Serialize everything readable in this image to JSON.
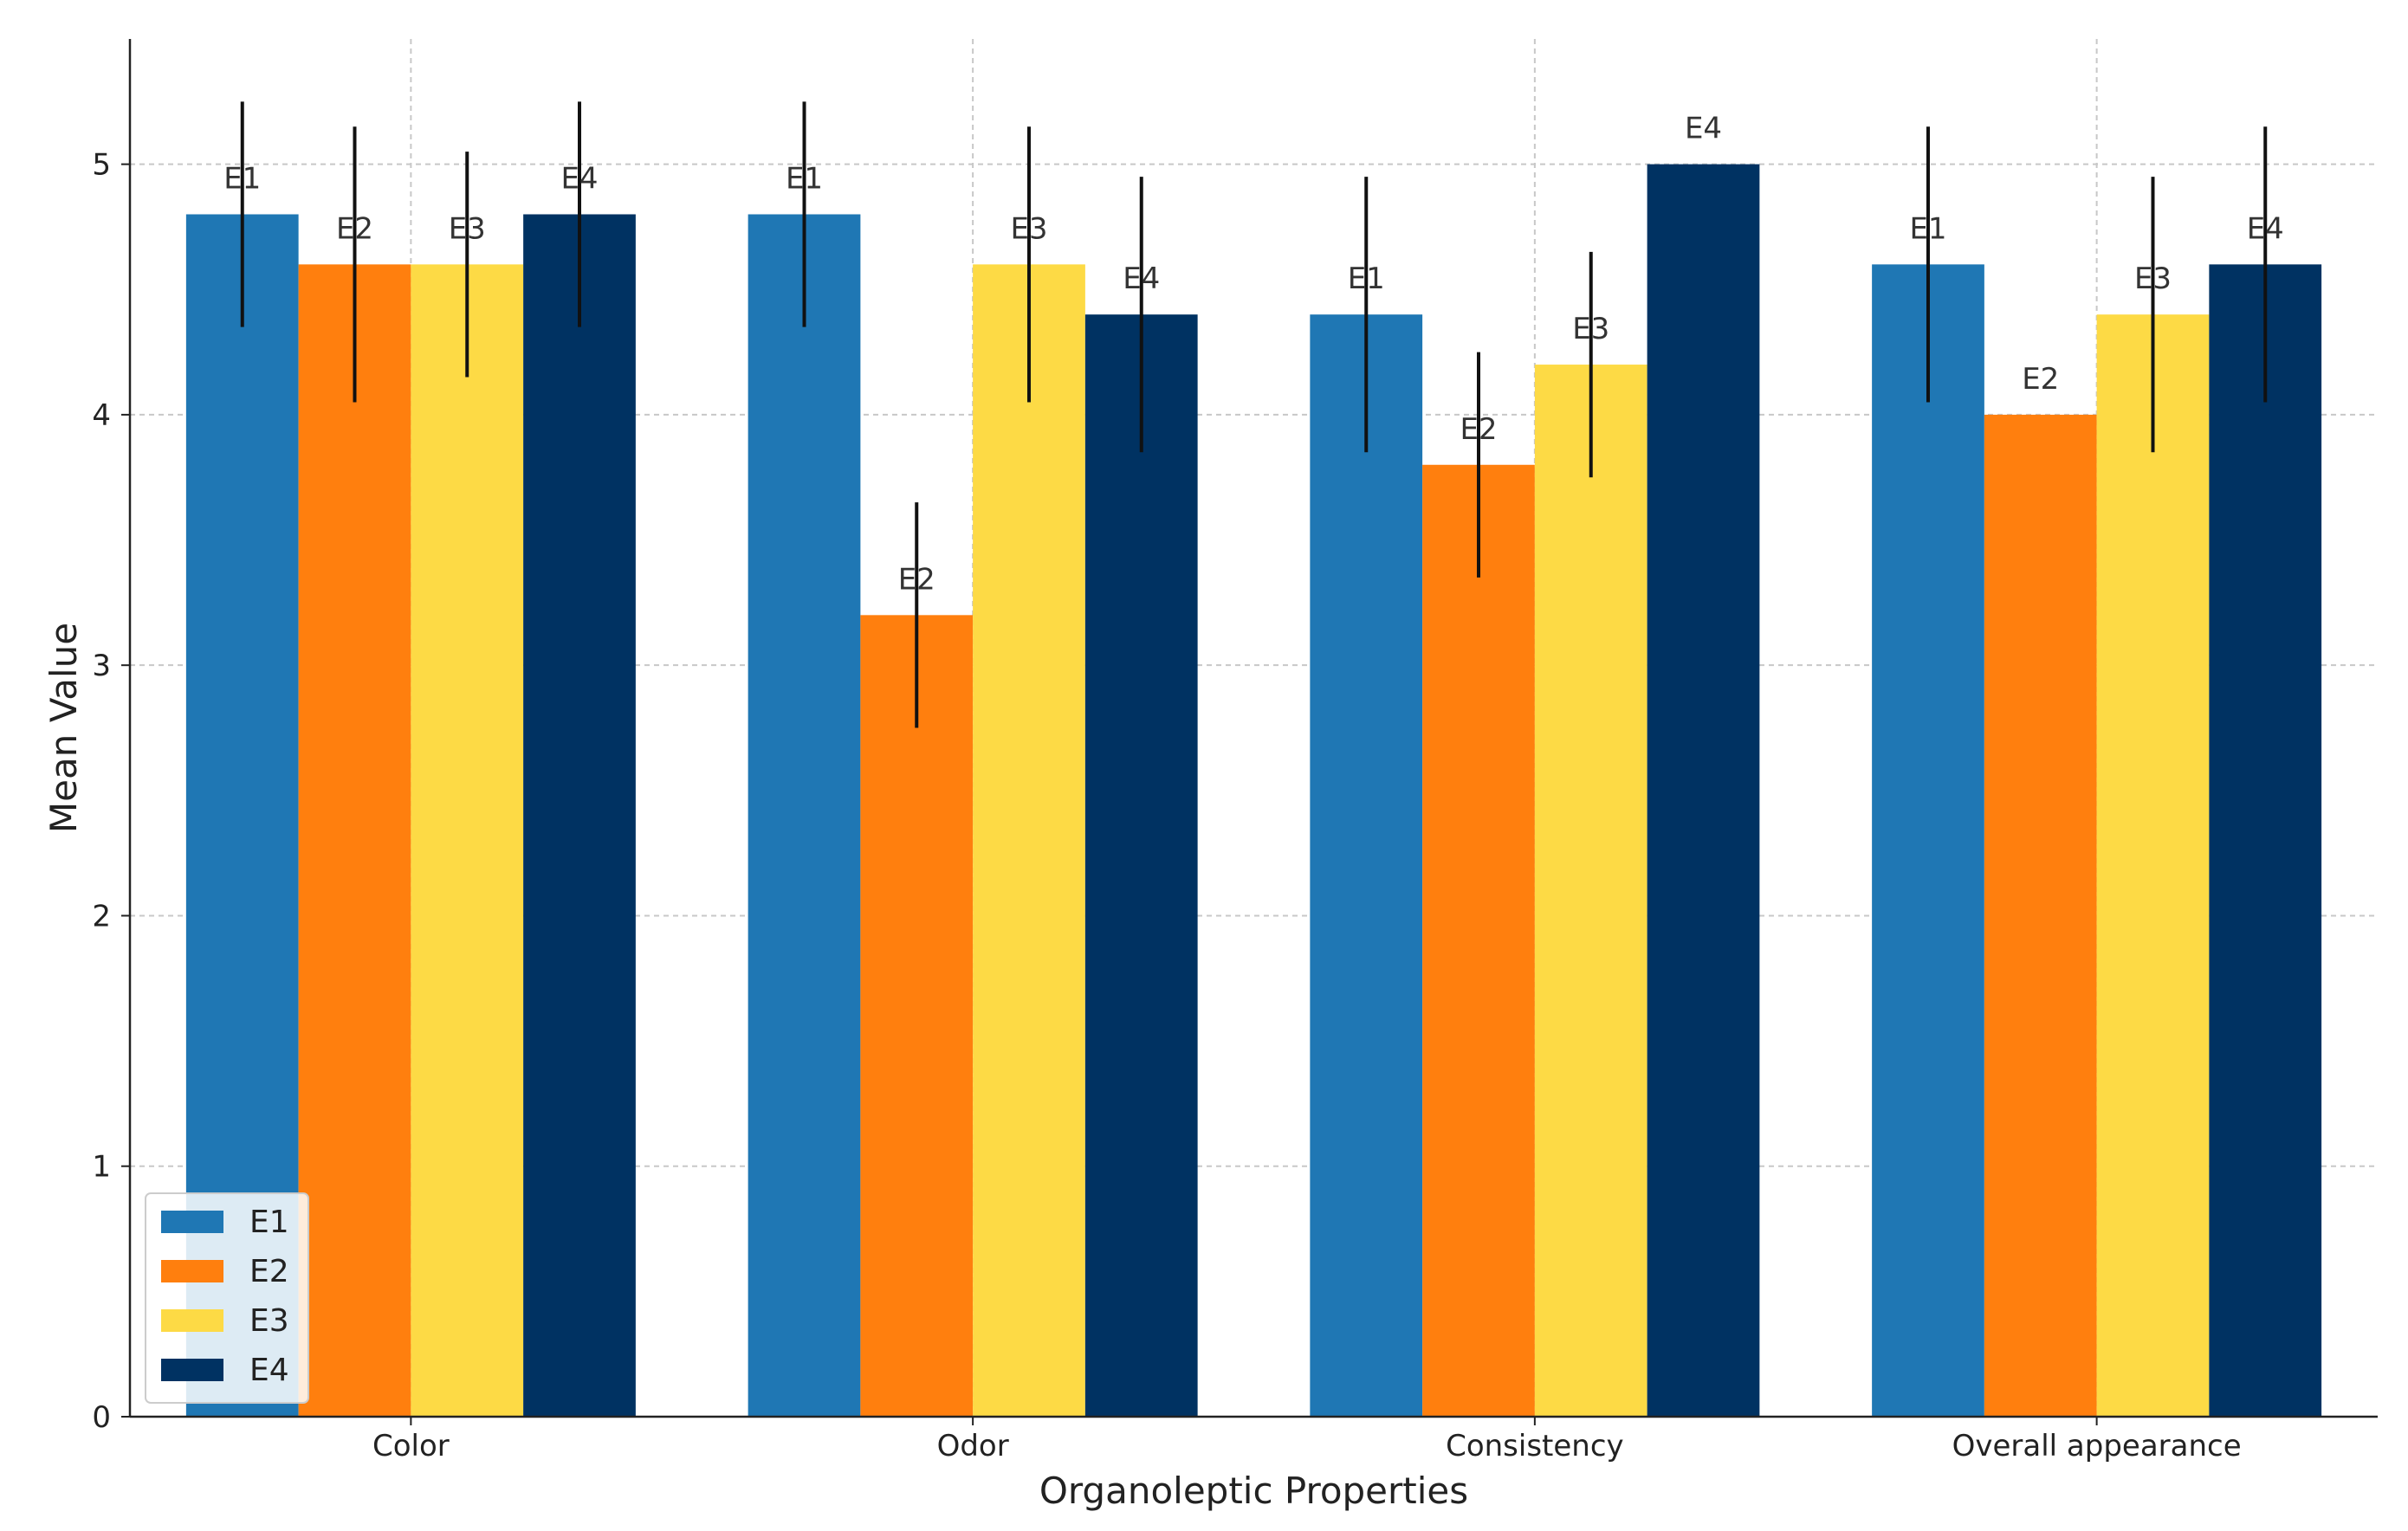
{
  "chart_data": {
    "type": "bar",
    "title": "",
    "xlabel": "Organoleptic Properties",
    "ylabel": "Mean Value",
    "categories": [
      "Color",
      "Odor",
      "Consistency",
      "Overall appearance"
    ],
    "ylim": [
      0,
      5.5
    ],
    "yticks": [
      0,
      1,
      2,
      3,
      4,
      5
    ],
    "grid": true,
    "legend_position": "bottom-left",
    "series": [
      {
        "name": "E1",
        "color": "#1f77b4",
        "values": [
          4.8,
          4.8,
          4.4,
          4.6
        ],
        "errors": [
          0.45,
          0.45,
          0.55,
          0.55
        ]
      },
      {
        "name": "E2",
        "color": "#ff7f0e",
        "values": [
          4.6,
          3.2,
          3.8,
          4.0
        ],
        "errors": [
          0.55,
          0.45,
          0.45,
          0
        ]
      },
      {
        "name": "E3",
        "color": "#fdda45",
        "values": [
          4.6,
          4.6,
          4.2,
          4.4
        ],
        "errors": [
          0.45,
          0.55,
          0.45,
          0.55
        ]
      },
      {
        "name": "E4",
        "color": "#003262",
        "values": [
          4.8,
          4.4,
          5.0,
          4.6
        ],
        "errors": [
          0.45,
          0.55,
          0,
          0.55
        ]
      }
    ]
  }
}
